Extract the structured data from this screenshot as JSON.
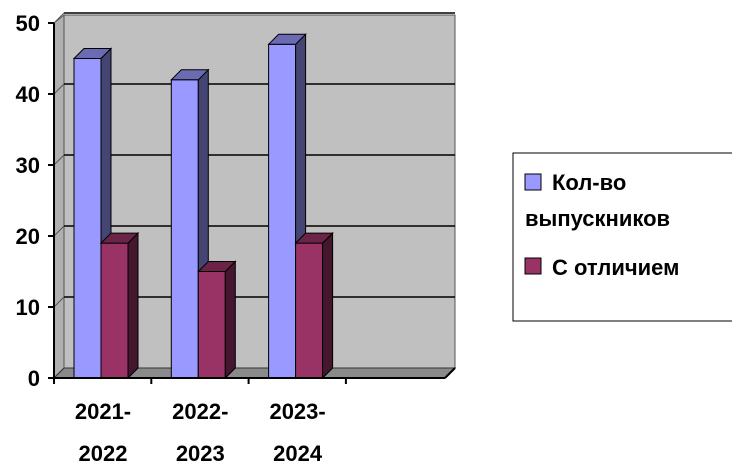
{
  "chart_data": {
    "type": "bar",
    "categories": [
      [
        "2021-",
        "2022"
      ],
      [
        "2022-",
        "2023"
      ],
      [
        "2023-",
        "2024"
      ]
    ],
    "series": [
      {
        "name": "Кол-во выпускников",
        "legend_lines": [
          "Кол-во",
          "выпускников"
        ],
        "values": [
          45,
          42,
          47
        ],
        "color": "#9999ff"
      },
      {
        "name": "С отличием",
        "legend_lines": [
          "С отличием"
        ],
        "values": [
          19,
          15,
          19
        ],
        "color": "#993366"
      }
    ],
    "ylim": [
      0,
      50
    ],
    "yticks": [
      "0",
      "10",
      "20",
      "30",
      "40",
      "50"
    ],
    "grid": true,
    "legend": "right",
    "plot_background": "#c0c0c0"
  }
}
